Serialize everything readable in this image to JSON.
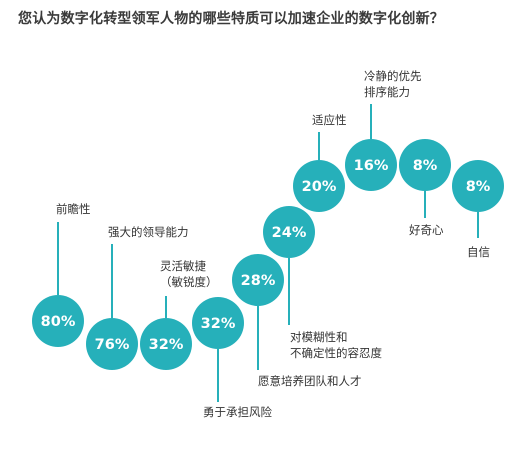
{
  "chart_data": {
    "type": "bubble",
    "title": "您认为数字化转型领军人物的哪些特质可以加速企业的数字化创新？",
    "color": "#26B0BA",
    "points": [
      {
        "label": "前瞻性",
        "value": 80,
        "value_label": "80%"
      },
      {
        "label": "强大的领导能力",
        "value": 76,
        "value_label": "76%"
      },
      {
        "label": "灵活敏捷\n（敏锐度）",
        "value": 32,
        "value_label": "32%"
      },
      {
        "label": "勇于承担风险",
        "value": 32,
        "value_label": "32%"
      },
      {
        "label": "愿意培养团队和人才",
        "value": 28,
        "value_label": "28%"
      },
      {
        "label": "对模糊性和\n不确定性的容忍度",
        "value": 24,
        "value_label": "24%"
      },
      {
        "label": "适应性",
        "value": 20,
        "value_label": "20%"
      },
      {
        "label": "冷静的优先\n排序能力",
        "value": 16,
        "value_label": "16%"
      },
      {
        "label": "好奇心",
        "value": 8,
        "value_label": "8%"
      },
      {
        "label": "自信",
        "value": 8,
        "value_label": "8%"
      }
    ]
  }
}
